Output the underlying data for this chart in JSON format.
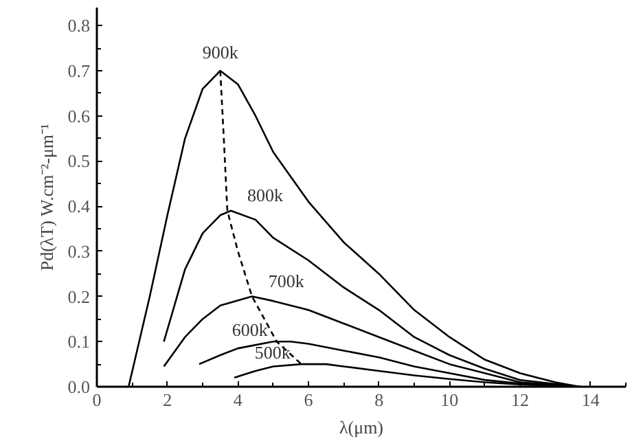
{
  "chart_data": {
    "type": "line",
    "xlabel": "λ(μm)",
    "ylabel": "Pd(λT) W.cm⁻²-μm⁻¹",
    "xlim": [
      0,
      15
    ],
    "ylim": [
      0,
      0.84
    ],
    "xticks": [
      0,
      2,
      4,
      6,
      8,
      10,
      12,
      14
    ],
    "yticks": [
      {
        "value": 0,
        "label": "0.0"
      },
      0.1,
      0.2,
      0.3,
      0.4,
      0.5,
      0.6,
      0.7,
      0.8
    ],
    "grid": false,
    "marker": "none",
    "line_style": "solid",
    "series": [
      {
        "name": "900k",
        "color": "#000000",
        "x": [
          0.9,
          1.5,
          2,
          2.5,
          3,
          3.5,
          4,
          4.5,
          5,
          6,
          7,
          8,
          9,
          10,
          11,
          12,
          13,
          13.7
        ],
        "values": [
          0,
          0.2,
          0.38,
          0.55,
          0.66,
          0.7,
          0.67,
          0.6,
          0.52,
          0.41,
          0.32,
          0.25,
          0.17,
          0.11,
          0.06,
          0.03,
          0.01,
          0
        ]
      },
      {
        "name": "800k",
        "color": "#000000",
        "x": [
          1.9,
          2.5,
          3,
          3.5,
          3.8,
          4.5,
          5,
          6,
          7,
          8,
          9,
          10,
          11,
          12,
          13.7
        ],
        "values": [
          0.1,
          0.26,
          0.34,
          0.38,
          0.39,
          0.37,
          0.33,
          0.28,
          0.22,
          0.17,
          0.11,
          0.07,
          0.04,
          0.015,
          0
        ]
      },
      {
        "name": "700k",
        "color": "#000000",
        "x": [
          1.9,
          2.5,
          3,
          3.5,
          4.4,
          5,
          6,
          7,
          8,
          9,
          10,
          11,
          12,
          13.7
        ],
        "values": [
          0.045,
          0.11,
          0.15,
          0.18,
          0.2,
          0.19,
          0.17,
          0.14,
          0.11,
          0.08,
          0.05,
          0.03,
          0.01,
          0
        ]
      },
      {
        "name": "600k",
        "color": "#000000",
        "x": [
          2.9,
          3.5,
          4,
          5,
          5.5,
          6,
          7,
          8,
          9,
          10,
          11,
          12,
          13.7
        ],
        "values": [
          0.05,
          0.07,
          0.085,
          0.1,
          0.1,
          0.095,
          0.08,
          0.065,
          0.045,
          0.03,
          0.015,
          0.007,
          0
        ]
      },
      {
        "name": "500k",
        "color": "#000000",
        "x": [
          3.9,
          4.5,
          5,
          5.8,
          6.5,
          7,
          8,
          9,
          10,
          11,
          12,
          13.7
        ],
        "values": [
          0.02,
          0.035,
          0.045,
          0.05,
          0.05,
          0.045,
          0.035,
          0.025,
          0.017,
          0.01,
          0.005,
          0
        ]
      },
      {
        "color": "#000000",
        "line_style": "dashed",
        "x": [
          3.5,
          3.6,
          3.7,
          4.0,
          4.4,
          5.1,
          5.8
        ],
        "values": [
          0.7,
          0.55,
          0.39,
          0.3,
          0.2,
          0.1,
          0.05
        ]
      }
    ]
  }
}
